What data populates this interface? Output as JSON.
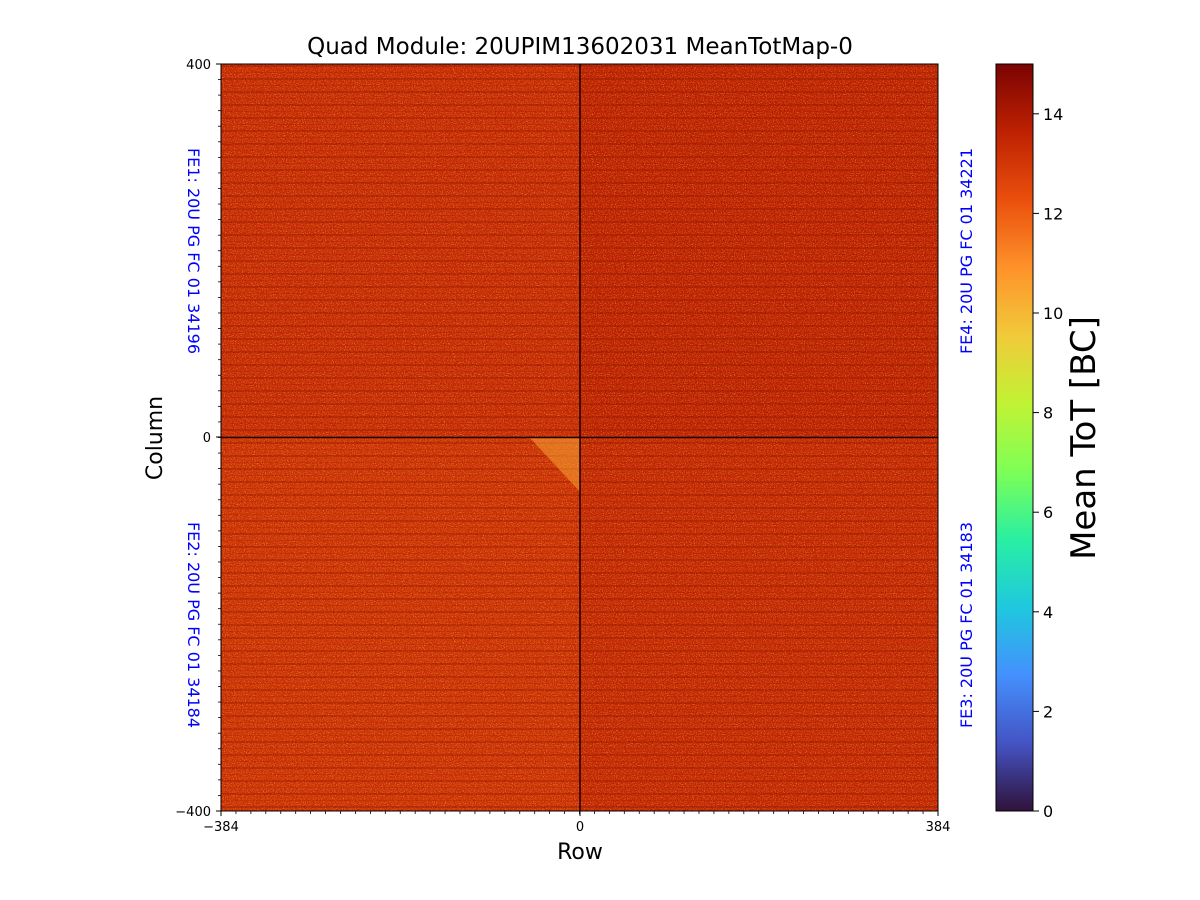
{
  "chart_data": {
    "type": "heatmap",
    "title": "Quad Module: 20UPIM13602031 MeanTotMap-0",
    "xlabel": "Row",
    "ylabel": "Column",
    "xlim": [
      -384,
      384
    ],
    "ylim": [
      -400,
      400
    ],
    "x_ticks": [
      "−384",
      "0",
      "384"
    ],
    "y_ticks": [
      "400",
      "0",
      "−400"
    ],
    "colorbar": {
      "label": "Mean ToT [BC]",
      "range": [
        0,
        15
      ],
      "ticks": [
        "0",
        "2",
        "4",
        "6",
        "8",
        "10",
        "12",
        "14"
      ],
      "colormap": "turbo",
      "stops": [
        "#30123b",
        "#4454c4",
        "#4490fe",
        "#1fc8de",
        "#29efa2",
        "#7dff56",
        "#c1f334",
        "#f1ca3a",
        "#fe922a",
        "#ea4f0d",
        "#be2102",
        "#7a0403"
      ]
    },
    "chips": [
      {
        "label": "FE1: 20U PG FC 01 34196",
        "quadrant": "top-left",
        "typical_mean_tot": 13.3
      },
      {
        "label": "FE4: 20U PG FC 01 34221",
        "quadrant": "top-right",
        "typical_mean_tot": 13.6
      },
      {
        "label": "FE2: 20U PG FC 01 34184",
        "quadrant": "bottom-left",
        "typical_mean_tot": 13.1
      },
      {
        "label": "FE3: 20U PG FC 01 34183",
        "quadrant": "bottom-right",
        "typical_mean_tot": 13.4
      }
    ],
    "grid": false
  }
}
